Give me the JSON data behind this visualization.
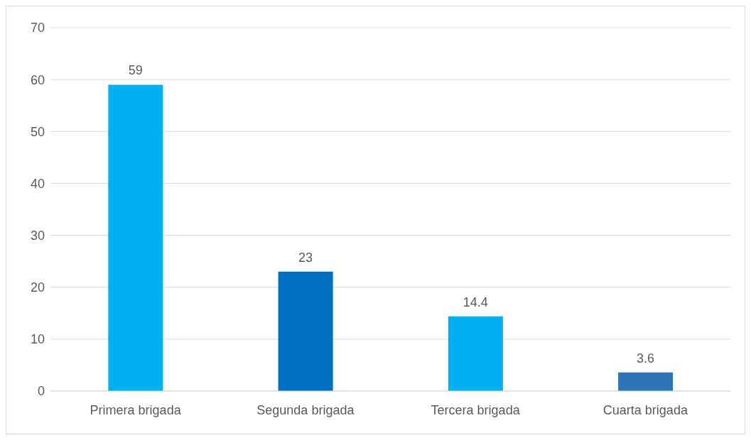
{
  "chart_data": {
    "type": "bar",
    "categories": [
      "Primera brigada",
      "Segunda brigada",
      "Tercera brigada",
      "Cuarta brigada"
    ],
    "values": [
      59,
      23,
      14.4,
      3.6
    ],
    "colors": [
      "#00b0f0",
      "#0070c0",
      "#00b0f0",
      "#2e75b6"
    ],
    "ylim": [
      0,
      70
    ],
    "yticks": [
      0,
      10,
      20,
      30,
      40,
      50,
      60,
      70
    ],
    "grid": "y",
    "data_labels": true
  }
}
